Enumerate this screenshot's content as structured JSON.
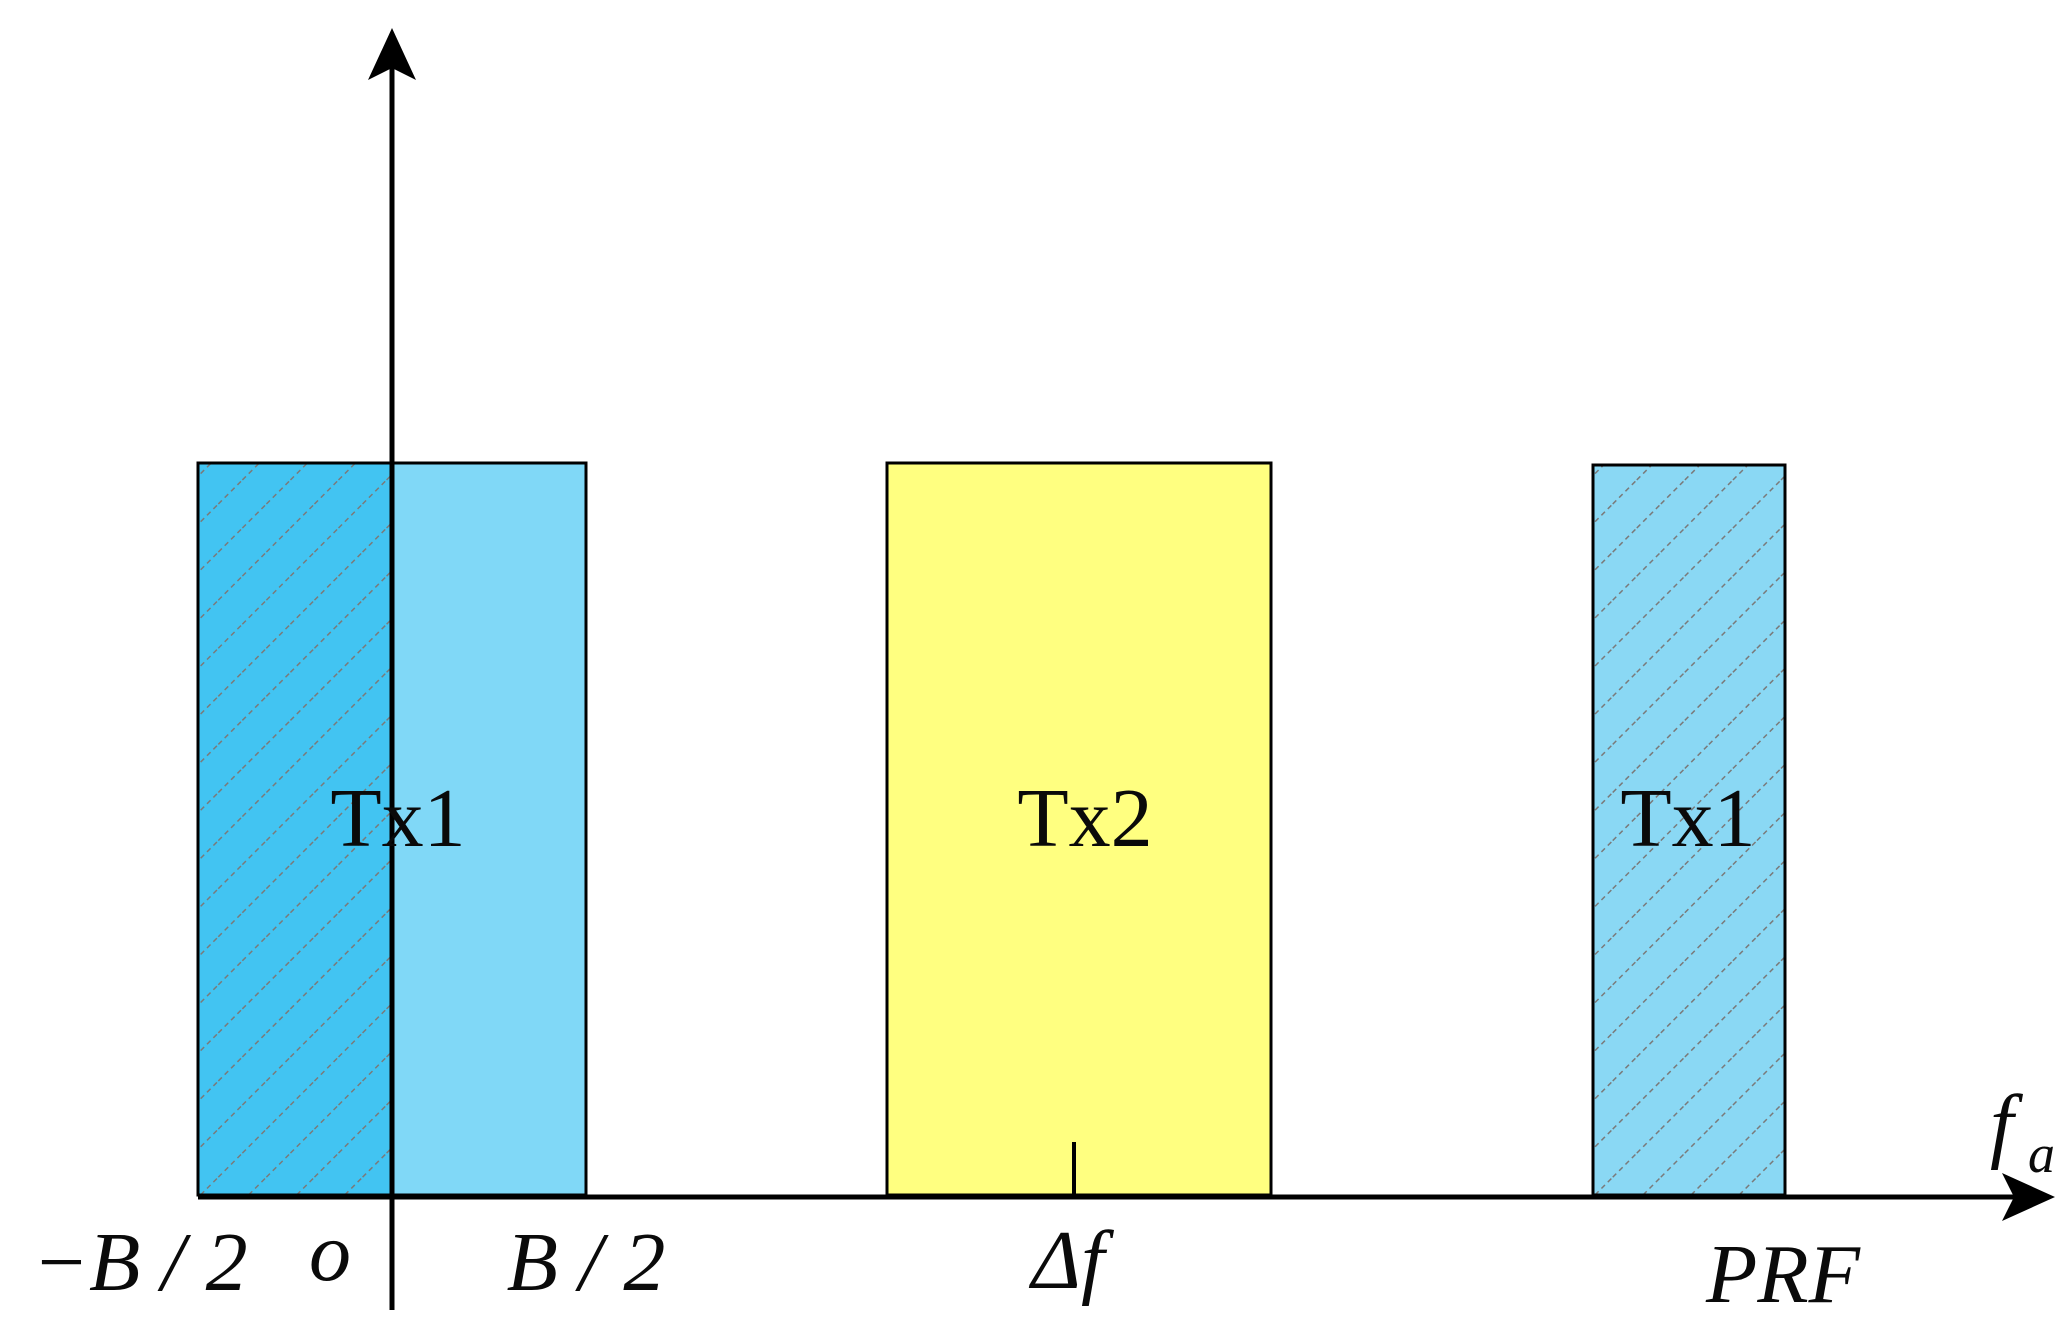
{
  "colors": {
    "tx1_light": "#80d8f7",
    "tx1_dark": "#42c4f2",
    "tx1_hatched": "#8ad8f4",
    "tx2": "#ffff80",
    "hatch_line": "#888888",
    "axis": "#000000"
  },
  "bands": [
    {
      "id": "tx1-main",
      "label": "Tx1"
    },
    {
      "id": "tx2",
      "label": "Tx2"
    },
    {
      "id": "tx1-alias",
      "label": "Tx1"
    }
  ],
  "axis": {
    "f_label": "f",
    "f_subscript": "a",
    "ticks": {
      "minus_b2": "−B / 2",
      "origin": "o",
      "b2": "B / 2",
      "delta_f": "Δf",
      "prf": "PRF"
    }
  }
}
